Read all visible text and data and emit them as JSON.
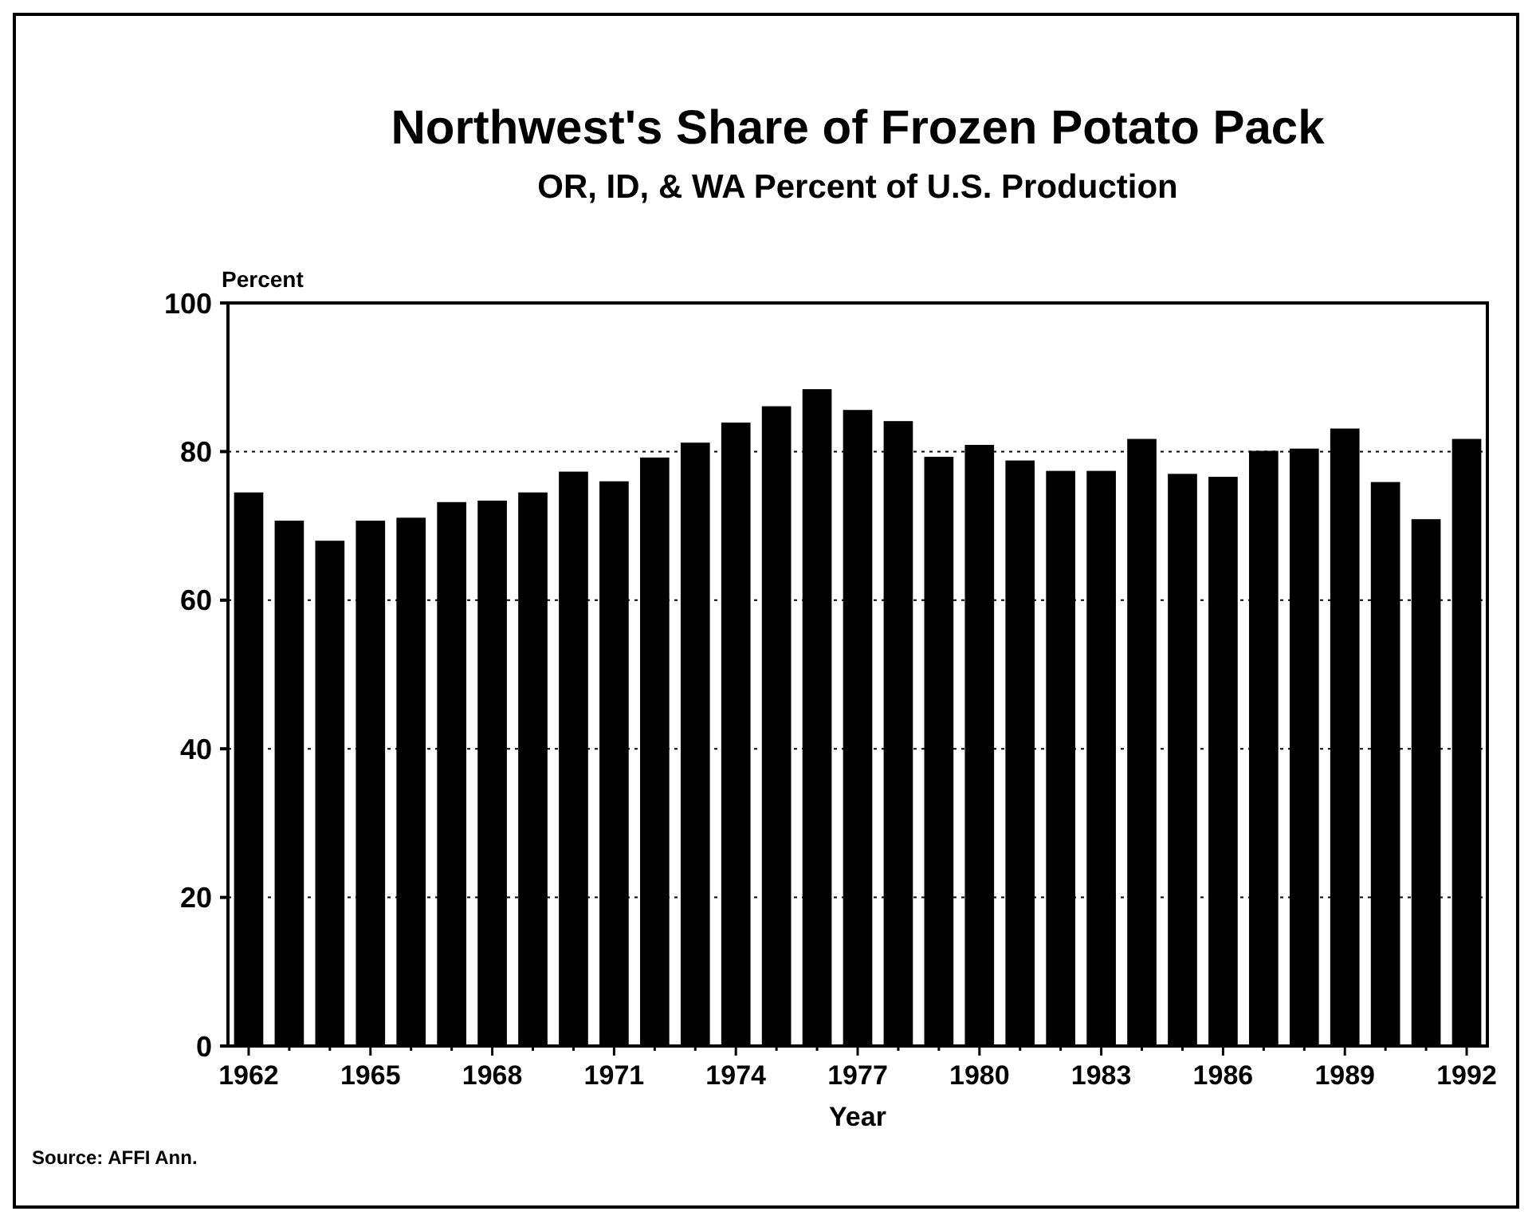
{
  "chart_data": {
    "type": "bar",
    "title": "Northwest's Share of Frozen Potato Pack",
    "subtitle": "OR, ID, & WA Percent of U.S. Production",
    "ylabel": "Percent",
    "xlabel": "Year",
    "categories": [
      "1962",
      null,
      null,
      "1965",
      null,
      null,
      "1968",
      null,
      null,
      "1971",
      null,
      null,
      "1974",
      null,
      null,
      "1977",
      null,
      null,
      "1980",
      null,
      null,
      "1983",
      null,
      null,
      "1986",
      null,
      null,
      "1989",
      null,
      null,
      "1992"
    ],
    "values": [
      74.5,
      70.7,
      68,
      70.7,
      71.1,
      73.2,
      73.4,
      74.5,
      77.3,
      76,
      79.2,
      81.2,
      83.9,
      86.1,
      88.4,
      85.6,
      84.1,
      79.3,
      80.9,
      78.8,
      77.4,
      77.4,
      81.7,
      77,
      76.6,
      80.1,
      80.4,
      83.1,
      75.9,
      70.9,
      81.7
    ],
    "color": "#000000",
    "ylim": [
      0,
      100
    ],
    "yticks": [
      0,
      20,
      40,
      60,
      80,
      100
    ],
    "grid": "y",
    "annotations": [
      "Source: AFFI Ann."
    ]
  }
}
